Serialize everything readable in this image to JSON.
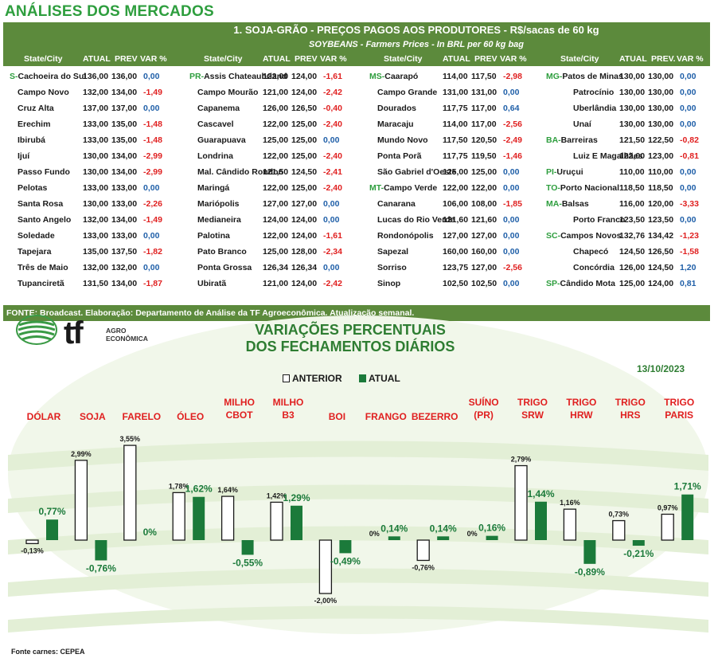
{
  "page_title": "ANÁLISES DOS MERCADOS",
  "table": {
    "title": "1. SOJA-GRÃO - PREÇOS PAGOS AOS PRODUTORES - R$/sacas de 60 kg",
    "subtitle": "SOYBEANS - Farmers Prices - In BRL per 60 kg bag",
    "headers": [
      "State/City",
      "ATUAL",
      "PREV",
      "VAR %",
      "State/City",
      "ATUAL",
      "PREV",
      "VAR %",
      "State/City",
      "ATUAL",
      "PREV",
      "VAR %",
      "State/City",
      "ATUAL",
      "PREV.",
      "VAR %"
    ],
    "rows": [
      [
        [
          "S-",
          "Cachoeira do Sul",
          "136,00",
          "136,00",
          "0,00"
        ],
        [
          "PR-",
          "Assis Chateaubriand",
          "122,00",
          "124,00",
          "-1,61"
        ],
        [
          "MS-",
          "Caarapó",
          "114,00",
          "117,50",
          "-2,98"
        ],
        [
          "MG-",
          "Patos de Minas",
          "130,00",
          "130,00",
          "0,00"
        ]
      ],
      [
        [
          "",
          "Campo Novo",
          "132,00",
          "134,00",
          "-1,49"
        ],
        [
          "",
          "Campo Mourão",
          "121,00",
          "124,00",
          "-2,42"
        ],
        [
          "",
          "Campo Grande",
          "131,00",
          "131,00",
          "0,00"
        ],
        [
          "",
          "Patrocínio",
          "130,00",
          "130,00",
          "0,00"
        ]
      ],
      [
        [
          "",
          "Cruz Alta",
          "137,00",
          "137,00",
          "0,00"
        ],
        [
          "",
          "Capanema",
          "126,00",
          "126,50",
          "-0,40"
        ],
        [
          "",
          "Dourados",
          "117,75",
          "117,00",
          "0,64"
        ],
        [
          "",
          "Uberlândia",
          "130,00",
          "130,00",
          "0,00"
        ]
      ],
      [
        [
          "",
          "Erechim",
          "133,00",
          "135,00",
          "-1,48"
        ],
        [
          "",
          "Cascavel",
          "122,00",
          "125,00",
          "-2,40"
        ],
        [
          "",
          "Maracaju",
          "114,00",
          "117,00",
          "-2,56"
        ],
        [
          "",
          "Unaí",
          "130,00",
          "130,00",
          "0,00"
        ]
      ],
      [
        [
          "",
          "Ibirubá",
          "133,00",
          "135,00",
          "-1,48"
        ],
        [
          "",
          "Guarapuava",
          "125,00",
          "125,00",
          "0,00"
        ],
        [
          "",
          "Mundo Novo",
          "117,50",
          "120,50",
          "-2,49"
        ],
        [
          "BA-",
          "Barreiras",
          "121,50",
          "122,50",
          "-0,82"
        ]
      ],
      [
        [
          "",
          "Ijuí",
          "130,00",
          "134,00",
          "-2,99"
        ],
        [
          "",
          "Londrina",
          "122,00",
          "125,00",
          "-2,40"
        ],
        [
          "",
          "Ponta Porã",
          "117,75",
          "119,50",
          "-1,46"
        ],
        [
          "",
          "Luiz E Magalhães",
          "122,00",
          "123,00",
          "-0,81"
        ]
      ],
      [
        [
          "",
          "Passo Fundo",
          "130,00",
          "134,00",
          "-2,99"
        ],
        [
          "",
          "Mal. Cândido Rondon",
          "121,50",
          "124,50",
          "-2,41"
        ],
        [
          "",
          "São Gabriel d'Oeste",
          "125,00",
          "125,00",
          "0,00"
        ],
        [
          "PI-",
          "Uruçui",
          "110,00",
          "110,00",
          "0,00"
        ]
      ],
      [
        [
          "",
          "Pelotas",
          "133,00",
          "133,00",
          "0,00"
        ],
        [
          "",
          "Maringá",
          "122,00",
          "125,00",
          "-2,40"
        ],
        [
          "MT-",
          "Campo Verde",
          "122,00",
          "122,00",
          "0,00"
        ],
        [
          "TO-",
          "Porto Nacional",
          "118,50",
          "118,50",
          "0,00"
        ]
      ],
      [
        [
          "",
          "Santa Rosa",
          "130,00",
          "133,00",
          "-2,26"
        ],
        [
          "",
          "Mariópolis",
          "127,00",
          "127,00",
          "0,00"
        ],
        [
          "",
          "Canarana",
          "106,00",
          "108,00",
          "-1,85"
        ],
        [
          "MA-",
          "Balsas",
          "116,00",
          "120,00",
          "-3,33"
        ]
      ],
      [
        [
          "",
          "Santo Angelo",
          "132,00",
          "134,00",
          "-1,49"
        ],
        [
          "",
          "Medianeira",
          "124,00",
          "124,00",
          "0,00"
        ],
        [
          "",
          "Lucas do Rio Verde",
          "121,60",
          "121,60",
          "0,00"
        ],
        [
          "",
          "Porto Franco",
          "123,50",
          "123,50",
          "0,00"
        ]
      ],
      [
        [
          "",
          "Soledade",
          "133,00",
          "133,00",
          "0,00"
        ],
        [
          "",
          "Palotina",
          "122,00",
          "124,00",
          "-1,61"
        ],
        [
          "",
          "Rondonópolis",
          "127,00",
          "127,00",
          "0,00"
        ],
        [
          "SC-",
          "Campos Novos",
          "132,76",
          "134,42",
          "-1,23"
        ]
      ],
      [
        [
          "",
          "Tapejara",
          "135,00",
          "137,50",
          "-1,82"
        ],
        [
          "",
          "Pato Branco",
          "125,00",
          "128,00",
          "-2,34"
        ],
        [
          "",
          "Sapezal",
          "160,00",
          "160,00",
          "0,00"
        ],
        [
          "",
          "Chapecó",
          "124,50",
          "126,50",
          "-1,58"
        ]
      ],
      [
        [
          "",
          "Três de Maio",
          "132,00",
          "132,00",
          "0,00"
        ],
        [
          "",
          "Ponta Grossa",
          "126,34",
          "126,34",
          "0,00"
        ],
        [
          "",
          "Sorriso",
          "123,75",
          "127,00",
          "-2,56"
        ],
        [
          "",
          "Concórdia",
          "126,00",
          "124,50",
          "1,20"
        ]
      ],
      [
        [
          "",
          "Tupanciretã",
          "131,50",
          "134,00",
          "-1,87"
        ],
        [
          "",
          "Ubiratã",
          "121,00",
          "124,00",
          "-2,42"
        ],
        [
          "",
          "Sinop",
          "102,50",
          "102,50",
          "0,00"
        ],
        [
          "SP-",
          "Cândido Mota",
          "125,00",
          "124,00",
          "0,81"
        ]
      ]
    ],
    "footer": "FONTE: Broadcast. Elaboração: Departamento de Análise da TF Agroeconômica. Atualização semanal."
  },
  "logo": {
    "main": "tf",
    "line1": "AGRO",
    "line2": "ECONÔMICA"
  },
  "chart_title_1": "VARIAÇÕES PERCENTUAIS",
  "chart_title_2": "DOS FECHAMENTOS DIÁRIOS",
  "chart_date": "13/10/2023",
  "legend": {
    "prev": "ANTERIOR",
    "curr": "ATUAL"
  },
  "source_note": "Fonte carnes: CEPEA",
  "colors": {
    "green": "#1b7a3a",
    "red": "#e02020",
    "header_green": "#5c8a3c",
    "state_green": "#2e9e3e",
    "blue": "#1f5fa8"
  },
  "chart_data": {
    "type": "bar",
    "categories": [
      [
        "DÓLAR"
      ],
      [
        "SOJA"
      ],
      [
        "FARELO"
      ],
      [
        "ÓLEO"
      ],
      [
        "MILHO",
        "CBOT"
      ],
      [
        "MILHO",
        "B3"
      ],
      [
        "BOI"
      ],
      [
        "FRANGO"
      ],
      [
        "BEZERRO"
      ],
      [
        "SUÍNO",
        "(PR)"
      ],
      [
        "TRIGO",
        "SRW"
      ],
      [
        "TRIGO",
        "HRW"
      ],
      [
        "TRIGO",
        "HRS"
      ],
      [
        "TRIGO",
        "PARIS"
      ]
    ],
    "series": [
      {
        "name": "ANTERIOR",
        "values": [
          -0.13,
          2.99,
          3.55,
          1.78,
          1.64,
          1.42,
          -2.0,
          0,
          -0.76,
          0,
          2.79,
          1.16,
          0.73,
          0.97
        ],
        "labels": [
          "-0,13%",
          "2,99%",
          "3,55%",
          "1,78%",
          "1,64%",
          "1,42%",
          "-2,00%",
          "0%",
          "-0,76%",
          "0%",
          "2,79%",
          "1,16%",
          "0,73%",
          "0,97%"
        ]
      },
      {
        "name": "ATUAL",
        "values": [
          0.77,
          -0.76,
          0,
          1.62,
          -0.55,
          1.29,
          -0.49,
          0.14,
          0.14,
          0.16,
          1.44,
          -0.89,
          -0.21,
          1.71
        ],
        "labels": [
          "0,77%",
          "-0,76%",
          "0%",
          "1,62%",
          "-0,55%",
          "1,29%",
          "-0,49%",
          "0,14%",
          "0,14%",
          "0,16%",
          "1,44%",
          "-0,89%",
          "-0,21%",
          "1,71%"
        ]
      }
    ],
    "ylim": [
      -2.3,
      3.8
    ]
  }
}
